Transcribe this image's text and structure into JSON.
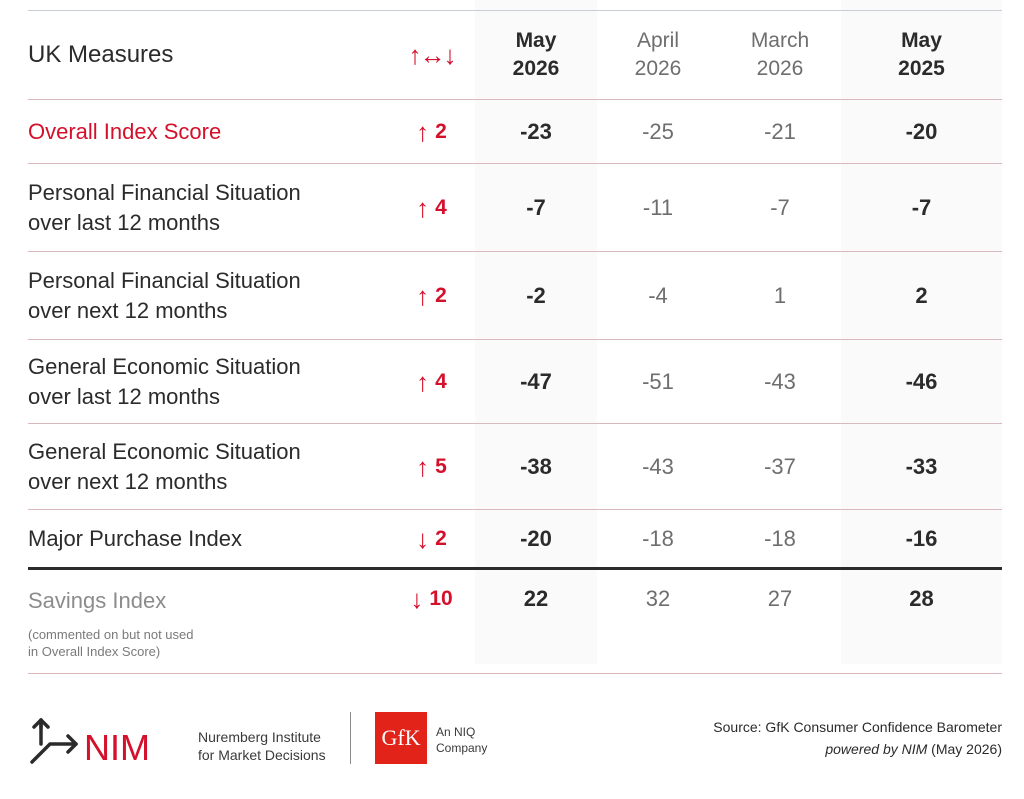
{
  "header": {
    "measures_label": "UK Measures",
    "change_symbol": "↑↔↓",
    "col1": {
      "line1": "May",
      "line2": "2026"
    },
    "col2": {
      "line1": "April",
      "line2": "2026"
    },
    "col3": {
      "line1": "March",
      "line2": "2026"
    },
    "col4": {
      "line1": "May",
      "line2": "2025"
    }
  },
  "rows": [
    {
      "label1": "Overall Index Score",
      "label2": "",
      "arrow": "↑",
      "change": "2",
      "v1": "-23",
      "v2": "-25",
      "v3": "-21",
      "v4": "-20"
    },
    {
      "label1": "Personal Financial Situation",
      "label2": "over last 12 months",
      "arrow": "↑",
      "change": "4",
      "v1": "-7",
      "v2": "-11",
      "v3": "-7",
      "v4": "-7"
    },
    {
      "label1": "Personal Financial Situation",
      "label2": "over next 12 months",
      "arrow": "↑",
      "change": "2",
      "v1": "-2",
      "v2": "-4",
      "v3": "1",
      "v4": "2"
    },
    {
      "label1": "General Economic Situation",
      "label2": "over last 12 months",
      "arrow": "↑",
      "change": "4",
      "v1": "-47",
      "v2": "-51",
      "v3": "-43",
      "v4": "-46"
    },
    {
      "label1": "General Economic Situation",
      "label2": "over next 12 months",
      "arrow": "↑",
      "change": "5",
      "v1": "-38",
      "v2": "-43",
      "v3": "-37",
      "v4": "-33"
    },
    {
      "label1": "Major Purchase Index",
      "label2": "",
      "arrow": "↓",
      "change": "2",
      "v1": "-20",
      "v2": "-18",
      "v3": "-18",
      "v4": "-16"
    }
  ],
  "savings": {
    "label": "Savings Index",
    "note1": "(commented on but not used",
    "note2": "in Overall Index Score)",
    "arrow": "↓",
    "change": "10",
    "v1": "22",
    "v2": "32",
    "v3": "27",
    "v4": "28"
  },
  "footer": {
    "nim_wordmark": "NIM",
    "nim_line1": "Nuremberg Institute",
    "nim_line2": "for Market Decisions",
    "gfk_logo_text": "GfK",
    "gfk_line1": "An NIQ",
    "gfk_line2": "Company",
    "source_line": "Source: GfK Consumer Confidence Barometer",
    "powered_italic": "powered by NIM",
    "powered_date": " (May 2026)"
  },
  "colors": {
    "accent_red": "#d4102b",
    "gfk_red": "#e2231a",
    "text": "#2b2b2b",
    "muted": "#6e6e6e"
  }
}
